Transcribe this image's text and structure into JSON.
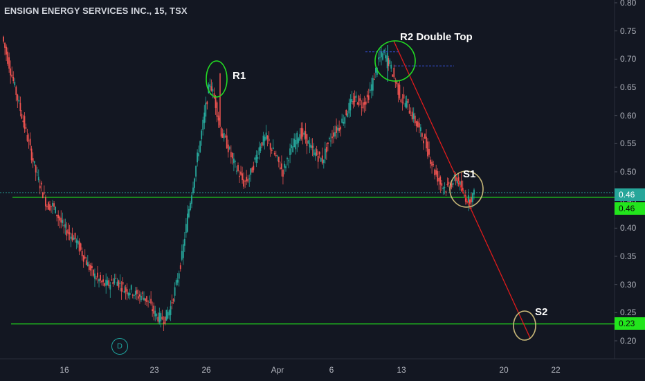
{
  "header": {
    "title": "ENSIGN ENERGY SERVICES INC., 15, TSX"
  },
  "annotations": {
    "r1": "R1",
    "r2": "R2 Double Top",
    "s1": "S1",
    "s2": "S2"
  },
  "event_marker": "D",
  "price_tags": [
    {
      "label": "0.46",
      "color": "#26a69a"
    },
    {
      "label": "0.46",
      "color": "#22e51c"
    },
    {
      "label": "0.23",
      "color": "#22e51c"
    }
  ],
  "colors": {
    "background": "#131722",
    "up_candle": "#26a69a",
    "down_candle": "#ef5350",
    "level_line": "#22e51c",
    "trend_line": "#e01b1b",
    "circle_green": "#22dd22",
    "circle_tan": "#c8b878"
  },
  "chart_data": {
    "type": "line",
    "title": "ENSIGN ENERGY SERVICES INC., 15, TSX",
    "x_ticks": [
      "16",
      "23",
      "26",
      "Apr",
      "6",
      "13",
      "20",
      "22"
    ],
    "y_ticks": [
      "0.80",
      "0.75",
      "0.70",
      "0.65",
      "0.60",
      "0.55",
      "0.50",
      "0.45",
      "0.40",
      "0.35",
      "0.30",
      "0.25",
      "0.20"
    ],
    "ylim": [
      0.18,
      0.8
    ],
    "grid": false,
    "series": [
      {
        "values": [
          0.74,
          0.7,
          0.66,
          0.62,
          0.58,
          0.54,
          0.5,
          0.47,
          0.44,
          0.44,
          0.42,
          0.4,
          0.39,
          0.38,
          0.36,
          0.34,
          0.32,
          0.31,
          0.3,
          0.3,
          0.31,
          0.3,
          0.29,
          0.29,
          0.28,
          0.28,
          0.27,
          0.25,
          0.24,
          0.24,
          0.26,
          0.3,
          0.35,
          0.42,
          0.48,
          0.54,
          0.6,
          0.66,
          0.62,
          0.57,
          0.55,
          0.52,
          0.5,
          0.48,
          0.49,
          0.52,
          0.55,
          0.56,
          0.54,
          0.52,
          0.5,
          0.53,
          0.55,
          0.57,
          0.56,
          0.54,
          0.53,
          0.52,
          0.55,
          0.57,
          0.58,
          0.6,
          0.62,
          0.63,
          0.62,
          0.63,
          0.66,
          0.7,
          0.71,
          0.69,
          0.66,
          0.63,
          0.62,
          0.6,
          0.58,
          0.56,
          0.53,
          0.5,
          0.48,
          0.47,
          0.48,
          0.49,
          0.46,
          0.45,
          0.46
        ]
      }
    ],
    "levels": [
      0.46,
      0.455,
      0.23
    ],
    "trendline": {
      "from": [
        0.73
      ],
      "to": [
        0.21
      ]
    }
  }
}
